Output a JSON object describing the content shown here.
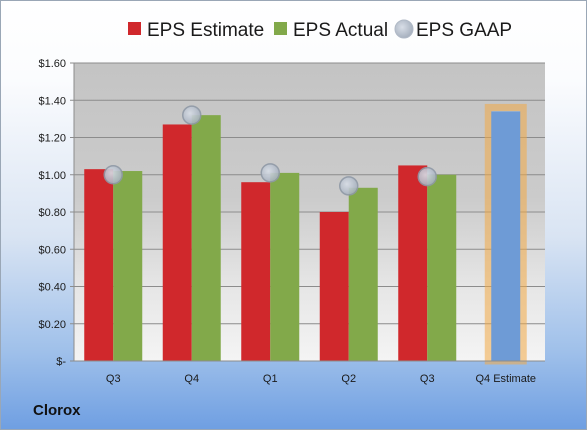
{
  "company": "Clorox",
  "chart_data": {
    "type": "bar",
    "categories": [
      "Q3",
      "Q4",
      "Q1",
      "Q2",
      "Q3",
      "Q4 Estimate"
    ],
    "series": [
      {
        "name": "EPS Estimate",
        "values": [
          1.03,
          1.27,
          0.96,
          0.8,
          1.05,
          null
        ],
        "color": "#d0282c"
      },
      {
        "name": "EPS Actual",
        "values": [
          1.02,
          1.32,
          1.01,
          0.93,
          1.0,
          null
        ],
        "color": "#82a94a"
      },
      {
        "name": "EPS GAAP",
        "values": [
          1.0,
          1.32,
          1.01,
          0.94,
          0.99,
          null
        ],
        "color": "#b9c4d3"
      },
      {
        "name": "",
        "values": [
          null,
          null,
          null,
          null,
          null,
          1.34
        ],
        "color": "#6e9bd6",
        "highlight": "#f3aa45"
      }
    ],
    "ylim": [
      0,
      1.6
    ],
    "yticks": [
      {
        "value": 1.6,
        "label": "$1.60"
      },
      {
        "value": 1.4,
        "label": "$1.40"
      },
      {
        "value": 1.2,
        "label": "$1.20"
      },
      {
        "value": 1.0,
        "label": "$1.00"
      },
      {
        "value": 0.8,
        "label": "$0.80"
      },
      {
        "value": 0.6,
        "label": "$0.60"
      },
      {
        "value": 0.4,
        "label": "$0.40"
      },
      {
        "value": 0.2,
        "label": "$0.20"
      },
      {
        "value": 0,
        "label": "$-"
      }
    ],
    "grid": true,
    "legend": "top"
  }
}
